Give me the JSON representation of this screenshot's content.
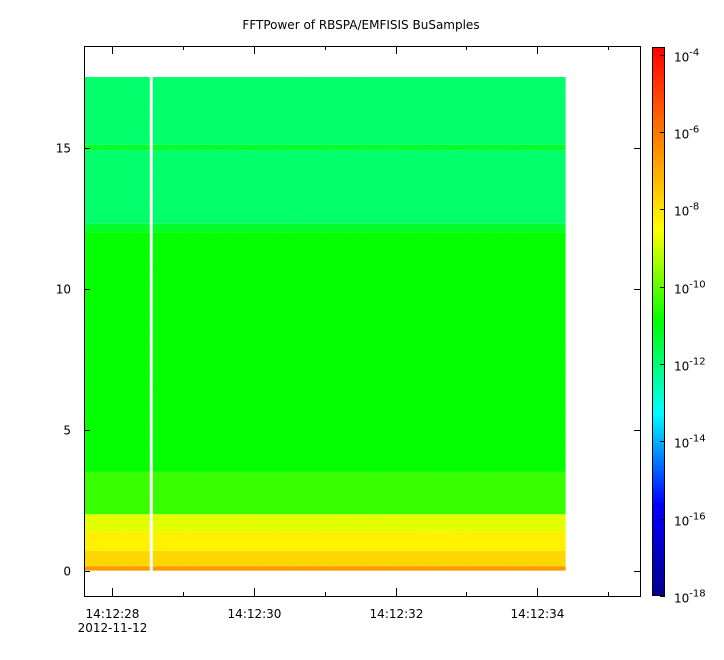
{
  "chart_data": {
    "type": "heatmap",
    "title": "FFTPower of RBSPA/EMFISIS  BuSamples",
    "xlabel": "",
    "ylabel": "",
    "x": {
      "ticks": [
        {
          "time": "14:12:28",
          "label": "14:12:28",
          "sublabel": "2012-11-12"
        },
        {
          "time": "14:12:30",
          "label": "14:12:30"
        },
        {
          "time": "14:12:32",
          "label": "14:12:32"
        },
        {
          "time": "14:12:34",
          "label": "14:12:34"
        }
      ],
      "minor_ticks": [
        "14:12:29",
        "14:12:31",
        "14:12:33",
        "14:12:35"
      ],
      "range": [
        "14:12:27.6",
        "14:12:35.45"
      ]
    },
    "y": {
      "ticks": [
        0,
        5,
        10,
        15
      ],
      "range": [
        -0.9,
        18.6
      ]
    },
    "data_extent": {
      "time_start": "14:12:27.6",
      "time_end": "14:12:34.4",
      "freq_start": 0,
      "freq_end": 17.5
    },
    "gap": {
      "time": "14:12:28.55"
    },
    "bands": [
      {
        "freq_from": 0.0,
        "freq_to": 0.15,
        "log10_power": -6.6
      },
      {
        "freq_from": 0.15,
        "freq_to": 0.7,
        "log10_power": -7.8
      },
      {
        "freq_from": 0.7,
        "freq_to": 1.4,
        "log10_power": -8.3
      },
      {
        "freq_from": 1.4,
        "freq_to": 2.0,
        "log10_power": -8.8
      },
      {
        "freq_from": 2.0,
        "freq_to": 3.5,
        "log10_power": -10.4
      },
      {
        "freq_from": 3.5,
        "freq_to": 12.0,
        "log10_power": -10.9
      },
      {
        "freq_from": 12.0,
        "freq_to": 12.3,
        "log10_power": -11.3
      },
      {
        "freq_from": 12.3,
        "freq_to": 14.9,
        "log10_power": -11.9
      },
      {
        "freq_from": 14.9,
        "freq_to": 15.1,
        "log10_power": -11.3
      },
      {
        "freq_from": 15.1,
        "freq_to": 17.5,
        "log10_power": -11.9
      }
    ],
    "colorbar": {
      "scale": "log",
      "range": [
        -18,
        -3.8
      ],
      "ticks": [
        {
          "value": -4,
          "base": "10",
          "exp": "-4"
        },
        {
          "value": -6,
          "base": "10",
          "exp": "-6"
        },
        {
          "value": -8,
          "base": "10",
          "exp": "-8"
        },
        {
          "value": -10,
          "base": "10",
          "exp": "-10"
        },
        {
          "value": -12,
          "base": "10",
          "exp": "-12"
        },
        {
          "value": -14,
          "base": "10",
          "exp": "-14"
        },
        {
          "value": -16,
          "base": "10",
          "exp": "-16"
        },
        {
          "value": -18,
          "base": "10",
          "exp": "-18"
        }
      ],
      "colormap": [
        "#00008f",
        "#0000ff",
        "#00ffff",
        "#00ff00",
        "#ffff00",
        "#ff7f00",
        "#ff0000"
      ]
    },
    "grid": false
  }
}
